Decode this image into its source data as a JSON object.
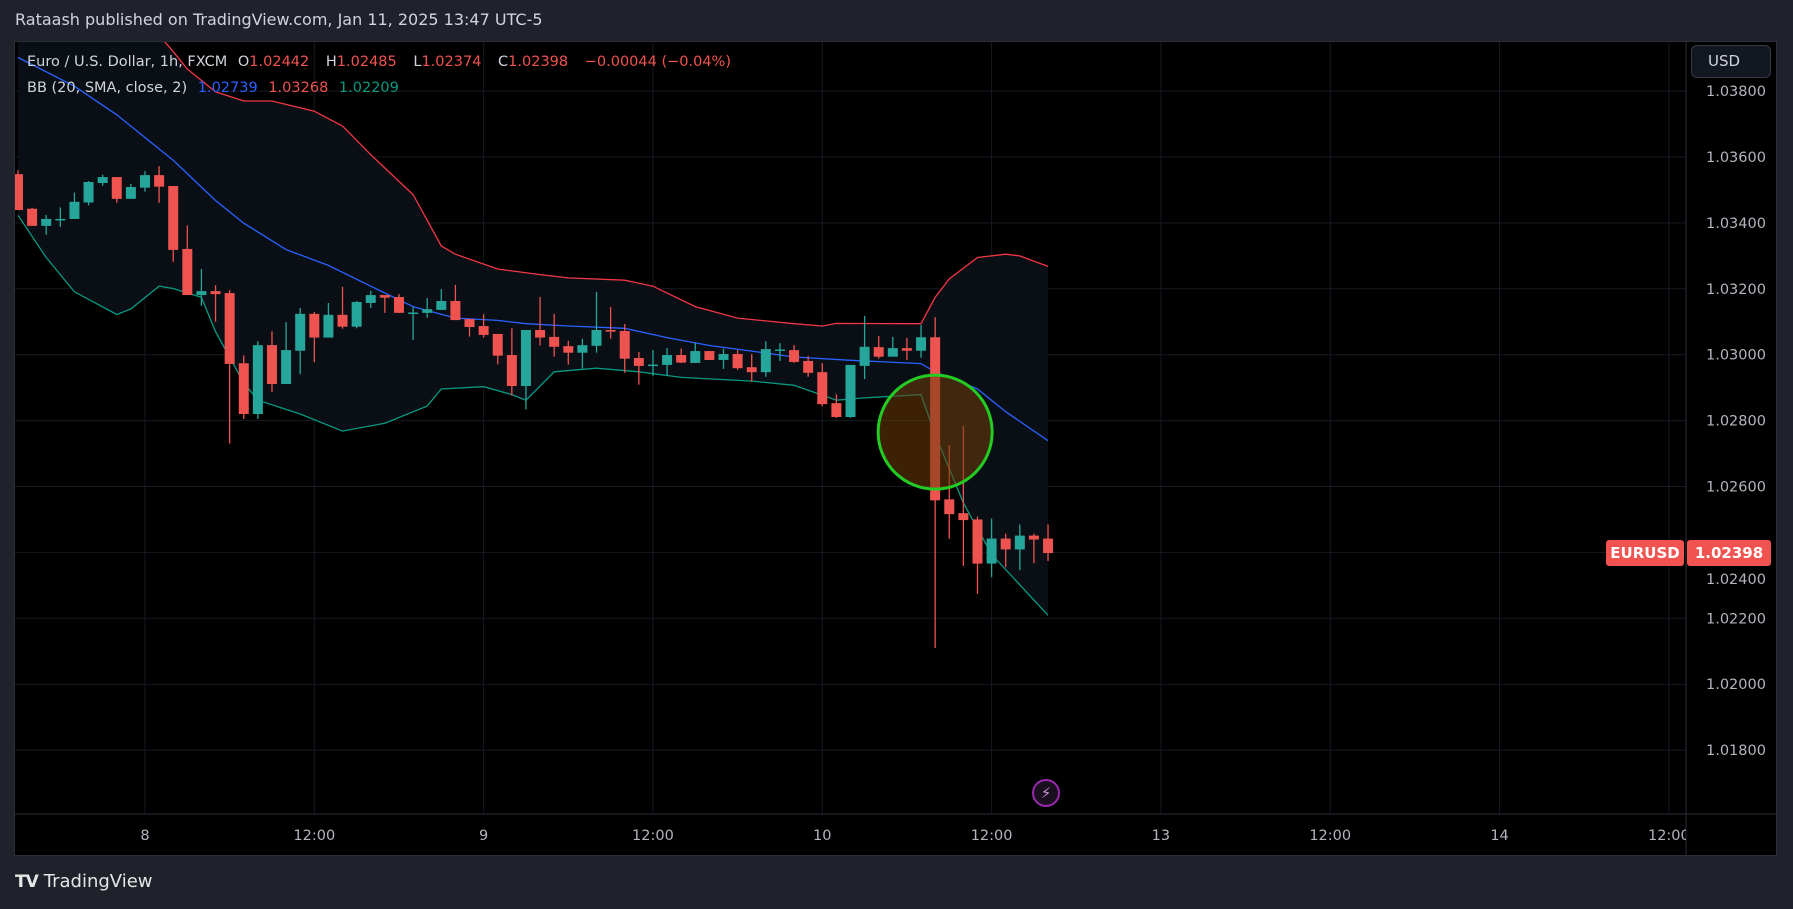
{
  "header": {
    "published": "Rataash published on TradingView.com, Jan 11, 2025 13:47 UTC-5"
  },
  "legend": {
    "symbol": "Euro / U.S. Dollar, 1h, FXCM",
    "o_label": "O",
    "o": "1.02442",
    "h_label": "H",
    "h": "1.02485",
    "l_label": "L",
    "l": "1.02374",
    "c_label": "C",
    "c": "1.02398",
    "change": "−0.00044 (−0.04%)",
    "bb_label": "BB (20, SMA, close, 2)",
    "bb_basis": "1.02739",
    "bb_upper": "1.03268",
    "bb_lower": "1.02209"
  },
  "currency_button": "USD",
  "price_label": {
    "symbol": "EURUSD",
    "value": "1.02398"
  },
  "footer": {
    "logo_mark": "17",
    "brand": "TradingView"
  },
  "colors": {
    "up": "#26a69a",
    "down": "#ef5350",
    "basis": "#2962ff",
    "upper": "#f23645",
    "lower": "#089981",
    "band_fill": "#0a0f16",
    "highlight_circle": "#22cc22"
  },
  "icons": {
    "flash": "lightning-icon"
  },
  "chart_data": {
    "type": "candlestick",
    "symbol": "EURUSD",
    "interval": "1h",
    "ylim": [
      1.0166,
      1.03949
    ],
    "grid": true,
    "y_ticks": [
      "1.03800",
      "1.03600",
      "1.03400",
      "1.03200",
      "1.03000",
      "1.02800",
      "1.02600",
      "1.02400",
      "1.02200",
      "1.02000",
      "1.01800"
    ],
    "x_ticks": [
      [
        "01-08 00:00",
        "8"
      ],
      [
        "01-08 12:00",
        "12:00"
      ],
      [
        "01-09 00:00",
        "9"
      ],
      [
        "01-09 12:00",
        "12:00"
      ],
      [
        "01-10 00:00",
        "10"
      ],
      [
        "01-10 12:00",
        "12:00"
      ],
      [
        "01-13 00:00",
        "13"
      ],
      [
        "01-13 12:00",
        "12:00"
      ],
      [
        "01-14 00:00",
        "14"
      ],
      [
        "01-14 12:00",
        "12:00"
      ]
    ],
    "candles_columns": [
      "time",
      "open",
      "high",
      "low",
      "close"
    ],
    "candles": [
      [
        "01-07 15:00",
        1.03548,
        1.0356,
        1.03439,
        1.03439
      ],
      [
        "01-07 16:00",
        1.03443,
        1.03446,
        1.03391,
        1.03391
      ],
      [
        "01-07 17:00",
        1.03391,
        1.03424,
        1.03364,
        1.03412
      ],
      [
        "01-07 18:00",
        1.03411,
        1.03447,
        1.03388,
        1.03412
      ],
      [
        "01-07 19:00",
        1.03412,
        1.03492,
        1.03412,
        1.03464
      ],
      [
        "01-07 20:00",
        1.03462,
        1.03527,
        1.03453,
        1.03524
      ],
      [
        "01-07 21:00",
        1.03521,
        1.03546,
        1.03513,
        1.03539
      ],
      [
        "01-07 22:00",
        1.03539,
        1.03539,
        1.03461,
        1.03473
      ],
      [
        "01-07 23:00",
        1.03473,
        1.03518,
        1.03473,
        1.03509
      ],
      [
        "01-08 00:00",
        1.03507,
        1.03557,
        1.03495,
        1.03545
      ],
      [
        "01-08 01:00",
        1.03545,
        1.03572,
        1.03461,
        1.0351
      ],
      [
        "01-08 02:00",
        1.03512,
        1.03512,
        1.03282,
        1.03318
      ],
      [
        "01-08 03:00",
        1.03321,
        1.03392,
        1.03181,
        1.03181
      ],
      [
        "01-08 04:00",
        1.03181,
        1.0326,
        1.03148,
        1.03193
      ],
      [
        "01-08 05:00",
        1.03193,
        1.03211,
        1.031,
        1.03184
      ],
      [
        "01-08 06:00",
        1.03187,
        1.03196,
        1.0273,
        1.02972
      ],
      [
        "01-08 07:00",
        1.02974,
        1.02998,
        1.02805,
        1.0282
      ],
      [
        "01-08 08:00",
        1.0282,
        1.03041,
        1.02805,
        1.03029
      ],
      [
        "01-08 09:00",
        1.03029,
        1.03071,
        1.02887,
        1.02911
      ],
      [
        "01-08 10:00",
        1.02911,
        1.03099,
        1.02911,
        1.03014
      ],
      [
        "01-08 11:00",
        1.03012,
        1.03142,
        1.02941,
        1.03124
      ],
      [
        "01-08 12:00",
        1.03124,
        1.0313,
        1.02977,
        1.03052
      ],
      [
        "01-08 13:00",
        1.03052,
        1.03157,
        1.03052,
        1.03121
      ],
      [
        "01-08 14:00",
        1.03121,
        1.03206,
        1.03079,
        1.03085
      ],
      [
        "01-08 15:00",
        1.03085,
        1.03163,
        1.0308,
        1.0316
      ],
      [
        "01-08 16:00",
        1.03157,
        1.03194,
        1.03142,
        1.03181
      ],
      [
        "01-08 17:00",
        1.03181,
        1.03181,
        1.03127,
        1.03173
      ],
      [
        "01-08 18:00",
        1.03175,
        1.03184,
        1.03127,
        1.03127
      ],
      [
        "01-08 19:00",
        1.03128,
        1.03145,
        1.03045,
        1.03128
      ],
      [
        "01-08 20:00",
        1.03127,
        1.03172,
        1.03112,
        1.03138
      ],
      [
        "01-08 21:00",
        1.03136,
        1.03199,
        1.03136,
        1.03163
      ],
      [
        "01-08 22:00",
        1.03163,
        1.03212,
        1.03105,
        1.03105
      ],
      [
        "01-08 23:00",
        1.03108,
        1.03108,
        1.03055,
        1.03084
      ],
      [
        "01-09 00:00",
        1.03087,
        1.03123,
        1.03052,
        1.0306
      ],
      [
        "01-09 01:00",
        1.03063,
        1.03063,
        1.02971,
        1.02997
      ],
      [
        "01-09 02:00",
        1.02999,
        1.0308,
        1.02876,
        1.02905
      ],
      [
        "01-09 03:00",
        1.02905,
        1.03075,
        1.02834,
        1.03075
      ],
      [
        "01-09 04:00",
        1.03075,
        1.03175,
        1.03028,
        1.03052
      ],
      [
        "01-09 05:00",
        1.03054,
        1.03124,
        1.02994,
        1.03024
      ],
      [
        "01-09 06:00",
        1.03026,
        1.03042,
        1.0297,
        1.03006
      ],
      [
        "01-09 07:00",
        1.03006,
        1.03048,
        1.02958,
        1.03029
      ],
      [
        "01-09 08:00",
        1.03027,
        1.0319,
        1.03006,
        1.03075
      ],
      [
        "01-09 09:00",
        1.03075,
        1.03145,
        1.03049,
        1.0307
      ],
      [
        "01-09 10:00",
        1.03072,
        1.03093,
        1.02945,
        1.02988
      ],
      [
        "01-09 11:00",
        1.0299,
        1.03008,
        1.02909,
        1.02966
      ],
      [
        "01-09 12:00",
        1.0297,
        1.03014,
        1.02936,
        1.0297
      ],
      [
        "01-09 13:00",
        1.02969,
        1.0302,
        1.02936,
        1.02999
      ],
      [
        "01-09 14:00",
        1.02999,
        1.03019,
        1.02975,
        1.02976
      ],
      [
        "01-09 15:00",
        1.02975,
        1.03036,
        1.02975,
        1.03011
      ],
      [
        "01-09 16:00",
        1.03011,
        1.03011,
        1.02984,
        1.02984
      ],
      [
        "01-09 17:00",
        1.02984,
        1.03018,
        1.02957,
        1.03002
      ],
      [
        "01-09 18:00",
        1.03002,
        1.03014,
        1.02954,
        1.02959
      ],
      [
        "01-09 19:00",
        1.02962,
        1.03002,
        1.02918,
        1.02947
      ],
      [
        "01-09 20:00",
        1.02947,
        1.03041,
        1.02933,
        1.03017
      ],
      [
        "01-09 21:00",
        1.03016,
        1.03035,
        1.02981,
        1.03016
      ],
      [
        "01-09 22:00",
        1.03014,
        1.03029,
        1.02975,
        1.02978
      ],
      [
        "01-09 23:00",
        1.02981,
        1.02996,
        1.02933,
        1.02945
      ],
      [
        "01-10 00:00",
        1.02947,
        1.02975,
        1.02844,
        1.0285
      ],
      [
        "01-10 01:00",
        1.02853,
        1.0288,
        1.02808,
        1.02811
      ],
      [
        "01-10 02:00",
        1.02811,
        1.02969,
        1.02808,
        1.02969
      ],
      [
        "01-10 03:00",
        1.02966,
        1.03118,
        1.02926,
        1.03024
      ],
      [
        "01-10 04:00",
        1.03023,
        1.03057,
        1.02988,
        1.02994
      ],
      [
        "01-10 05:00",
        1.02994,
        1.03054,
        1.02994,
        1.0302
      ],
      [
        "01-10 06:00",
        1.0302,
        1.03051,
        1.02984,
        1.03012
      ],
      [
        "01-10 07:00",
        1.03012,
        1.0309,
        1.02991,
        1.03053
      ],
      [
        "01-10 08:00",
        1.03053,
        1.03114,
        1.0211,
        1.02558
      ],
      [
        "01-10 09:00",
        1.02561,
        1.02726,
        1.02441,
        1.02516
      ],
      [
        "01-10 10:00",
        1.02519,
        1.02784,
        1.02359,
        1.02498
      ],
      [
        "01-10 11:00",
        1.025,
        1.02509,
        1.02274,
        1.02366
      ],
      [
        "01-10 12:00",
        1.02366,
        1.02503,
        1.02325,
        1.02442
      ],
      [
        "01-10 13:00",
        1.02442,
        1.02457,
        1.02355,
        1.02409
      ],
      [
        "01-10 14:00",
        1.02409,
        1.02485,
        1.02346,
        1.02451
      ],
      [
        "01-10 15:00",
        1.02451,
        1.02457,
        1.02367,
        1.02439
      ],
      [
        "01-10 16:00",
        1.02442,
        1.02485,
        1.02374,
        1.02398
      ]
    ],
    "bollinger": {
      "upper": [
        [
          "01-08 01:00",
          1.0397
        ],
        [
          "01-08 02:00",
          1.0392
        ],
        [
          "01-08 03:00",
          1.03867
        ],
        [
          "01-08 05:00",
          1.03798
        ],
        [
          "01-08 07:00",
          1.0377
        ],
        [
          "01-08 09:00",
          1.0377
        ],
        [
          "01-08 12:00",
          1.03739
        ],
        [
          "01-08 14:00",
          1.03694
        ],
        [
          "01-08 16:00",
          1.03607
        ],
        [
          "01-08 19:00",
          1.03486
        ],
        [
          "01-08 21:00",
          1.0333
        ],
        [
          "01-08 22:00",
          1.03305
        ],
        [
          "01-09 01:00",
          1.0326
        ],
        [
          "01-09 04:00",
          1.03243
        ],
        [
          "01-09 06:00",
          1.03233
        ],
        [
          "01-09 10:00",
          1.03226
        ],
        [
          "01-09 12:00",
          1.03208
        ],
        [
          "01-09 15:00",
          1.03146
        ],
        [
          "01-09 18:00",
          1.03111
        ],
        [
          "01-09 22:00",
          1.03094
        ],
        [
          "01-10 00:00",
          1.03087
        ],
        [
          "01-10 01:00",
          1.03095
        ],
        [
          "01-10 07:00",
          1.03094
        ],
        [
          "01-10 08:00",
          1.03174
        ],
        [
          "01-10 09:00",
          1.0323
        ],
        [
          "01-10 11:00",
          1.03295
        ],
        [
          "01-10 13:00",
          1.03305
        ],
        [
          "01-10 14:00",
          1.033
        ],
        [
          "01-10 16:00",
          1.03268
        ]
      ],
      "basis": [
        [
          "01-07 15:00",
          1.03902
        ],
        [
          "01-07 19:00",
          1.03815
        ],
        [
          "01-07 22:00",
          1.03728
        ],
        [
          "01-08 02:00",
          1.0359
        ],
        [
          "01-08 05:00",
          1.03468
        ],
        [
          "01-08 07:00",
          1.03399
        ],
        [
          "01-08 10:00",
          1.03319
        ],
        [
          "01-08 13:00",
          1.03271
        ],
        [
          "01-08 16:00",
          1.03208
        ],
        [
          "01-08 19:00",
          1.03146
        ],
        [
          "01-08 22:00",
          1.03111
        ],
        [
          "01-09 01:00",
          1.03104
        ],
        [
          "01-09 03:00",
          1.03094
        ],
        [
          "01-09 06:00",
          1.03087
        ],
        [
          "01-09 10:00",
          1.0308
        ],
        [
          "01-09 13:00",
          1.03052
        ],
        [
          "01-09 16:00",
          1.03028
        ],
        [
          "01-09 19:00",
          1.03011
        ],
        [
          "01-09 22:00",
          1.02993
        ],
        [
          "01-10 02:00",
          1.02983
        ],
        [
          "01-10 07:00",
          1.02973
        ],
        [
          "01-10 08:00",
          1.02948
        ],
        [
          "01-10 11:00",
          1.02896
        ],
        [
          "01-10 13:00",
          1.02827
        ],
        [
          "01-10 16:00",
          1.02739
        ]
      ],
      "lower": [
        [
          "01-07 15:00",
          1.03423
        ],
        [
          "01-07 17:00",
          1.03295
        ],
        [
          "01-07 19:00",
          1.03191
        ],
        [
          "01-07 22:00",
          1.03122
        ],
        [
          "01-07 23:00",
          1.03139
        ],
        [
          "01-08 01:00",
          1.03208
        ],
        [
          "01-08 02:00",
          1.03201
        ],
        [
          "01-08 04:00",
          1.03174
        ],
        [
          "01-08 05:00",
          1.0307
        ],
        [
          "01-08 07:00",
          1.02914
        ],
        [
          "01-08 08:00",
          1.02862
        ],
        [
          "01-08 11:00",
          1.0282
        ],
        [
          "01-08 14:00",
          1.02768
        ],
        [
          "01-08 17:00",
          1.02792
        ],
        [
          "01-08 20:00",
          1.02844
        ],
        [
          "01-08 21:00",
          1.02896
        ],
        [
          "01-09 00:00",
          1.02903
        ],
        [
          "01-09 02:00",
          1.02879
        ],
        [
          "01-09 03:00",
          1.02862
        ],
        [
          "01-09 05:00",
          1.02948
        ],
        [
          "01-09 08:00",
          1.02959
        ],
        [
          "01-09 11:00",
          1.02948
        ],
        [
          "01-09 14:00",
          1.02931
        ],
        [
          "01-09 19:00",
          1.0292
        ],
        [
          "01-09 22:00",
          1.02907
        ],
        [
          "01-10 01:00",
          1.02862
        ],
        [
          "01-10 03:00",
          1.02869
        ],
        [
          "01-10 07:00",
          1.02879
        ],
        [
          "01-10 08:00",
          1.02758
        ],
        [
          "01-10 10:00",
          1.0255
        ],
        [
          "01-10 12:00",
          1.02394
        ],
        [
          "01-10 16:00",
          1.02209
        ]
      ]
    },
    "annotation": {
      "shape": "circle",
      "time": "01-10 08:00",
      "price": 1.02765
    }
  }
}
